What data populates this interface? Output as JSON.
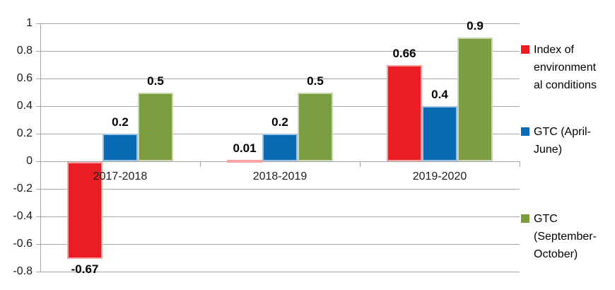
{
  "chart_data": {
    "type": "bar",
    "categories": [
      "2017-2018",
      "2018-2019",
      "2019-2020"
    ],
    "series": [
      {
        "name": "Index of environmental conditions",
        "legend_lines": [
          "Index of",
          "environment",
          "al conditions"
        ],
        "color": "#EC1C24",
        "values": [
          -0.67,
          0.01,
          0.66
        ],
        "labels": [
          "-0.67",
          "0.01",
          "0.66"
        ],
        "bar_heights": [
          -0.7,
          0.01,
          0.7
        ]
      },
      {
        "name": "GTC (April-June)",
        "legend_lines": [
          "GTC (April-",
          "June)"
        ],
        "color": "#0A6AB4",
        "values": [
          0.2,
          0.2,
          0.4
        ],
        "labels": [
          "0.2",
          "0.2",
          "0.4"
        ],
        "bar_heights": [
          0.2,
          0.2,
          0.4
        ]
      },
      {
        "name": "GTC (September-October)",
        "legend_lines": [
          "GTC",
          "(September-",
          "October)"
        ],
        "color": "#7C9C40",
        "values": [
          0.5,
          0.5,
          0.9
        ],
        "labels": [
          "0.5",
          "0.5",
          "0.9"
        ],
        "bar_heights": [
          0.5,
          0.5,
          0.9
        ]
      }
    ],
    "y_axis": {
      "min": -0.8,
      "max": 1,
      "ticks": [
        1,
        0.8,
        0.6,
        0.4,
        0.2,
        0,
        -0.2,
        -0.4,
        -0.6,
        -0.8
      ],
      "tick_labels": [
        "1",
        "0.8",
        "0.6",
        "0.4",
        "0.2",
        "0",
        "-0.2",
        "-0.4",
        "-0.6",
        "-0.8"
      ]
    },
    "grid": true,
    "legend_position": "right",
    "styles": {
      "gridline_color": "#A6A6A6",
      "axis_color": "#A6A6A6",
      "background": "#FFFFFF"
    }
  }
}
